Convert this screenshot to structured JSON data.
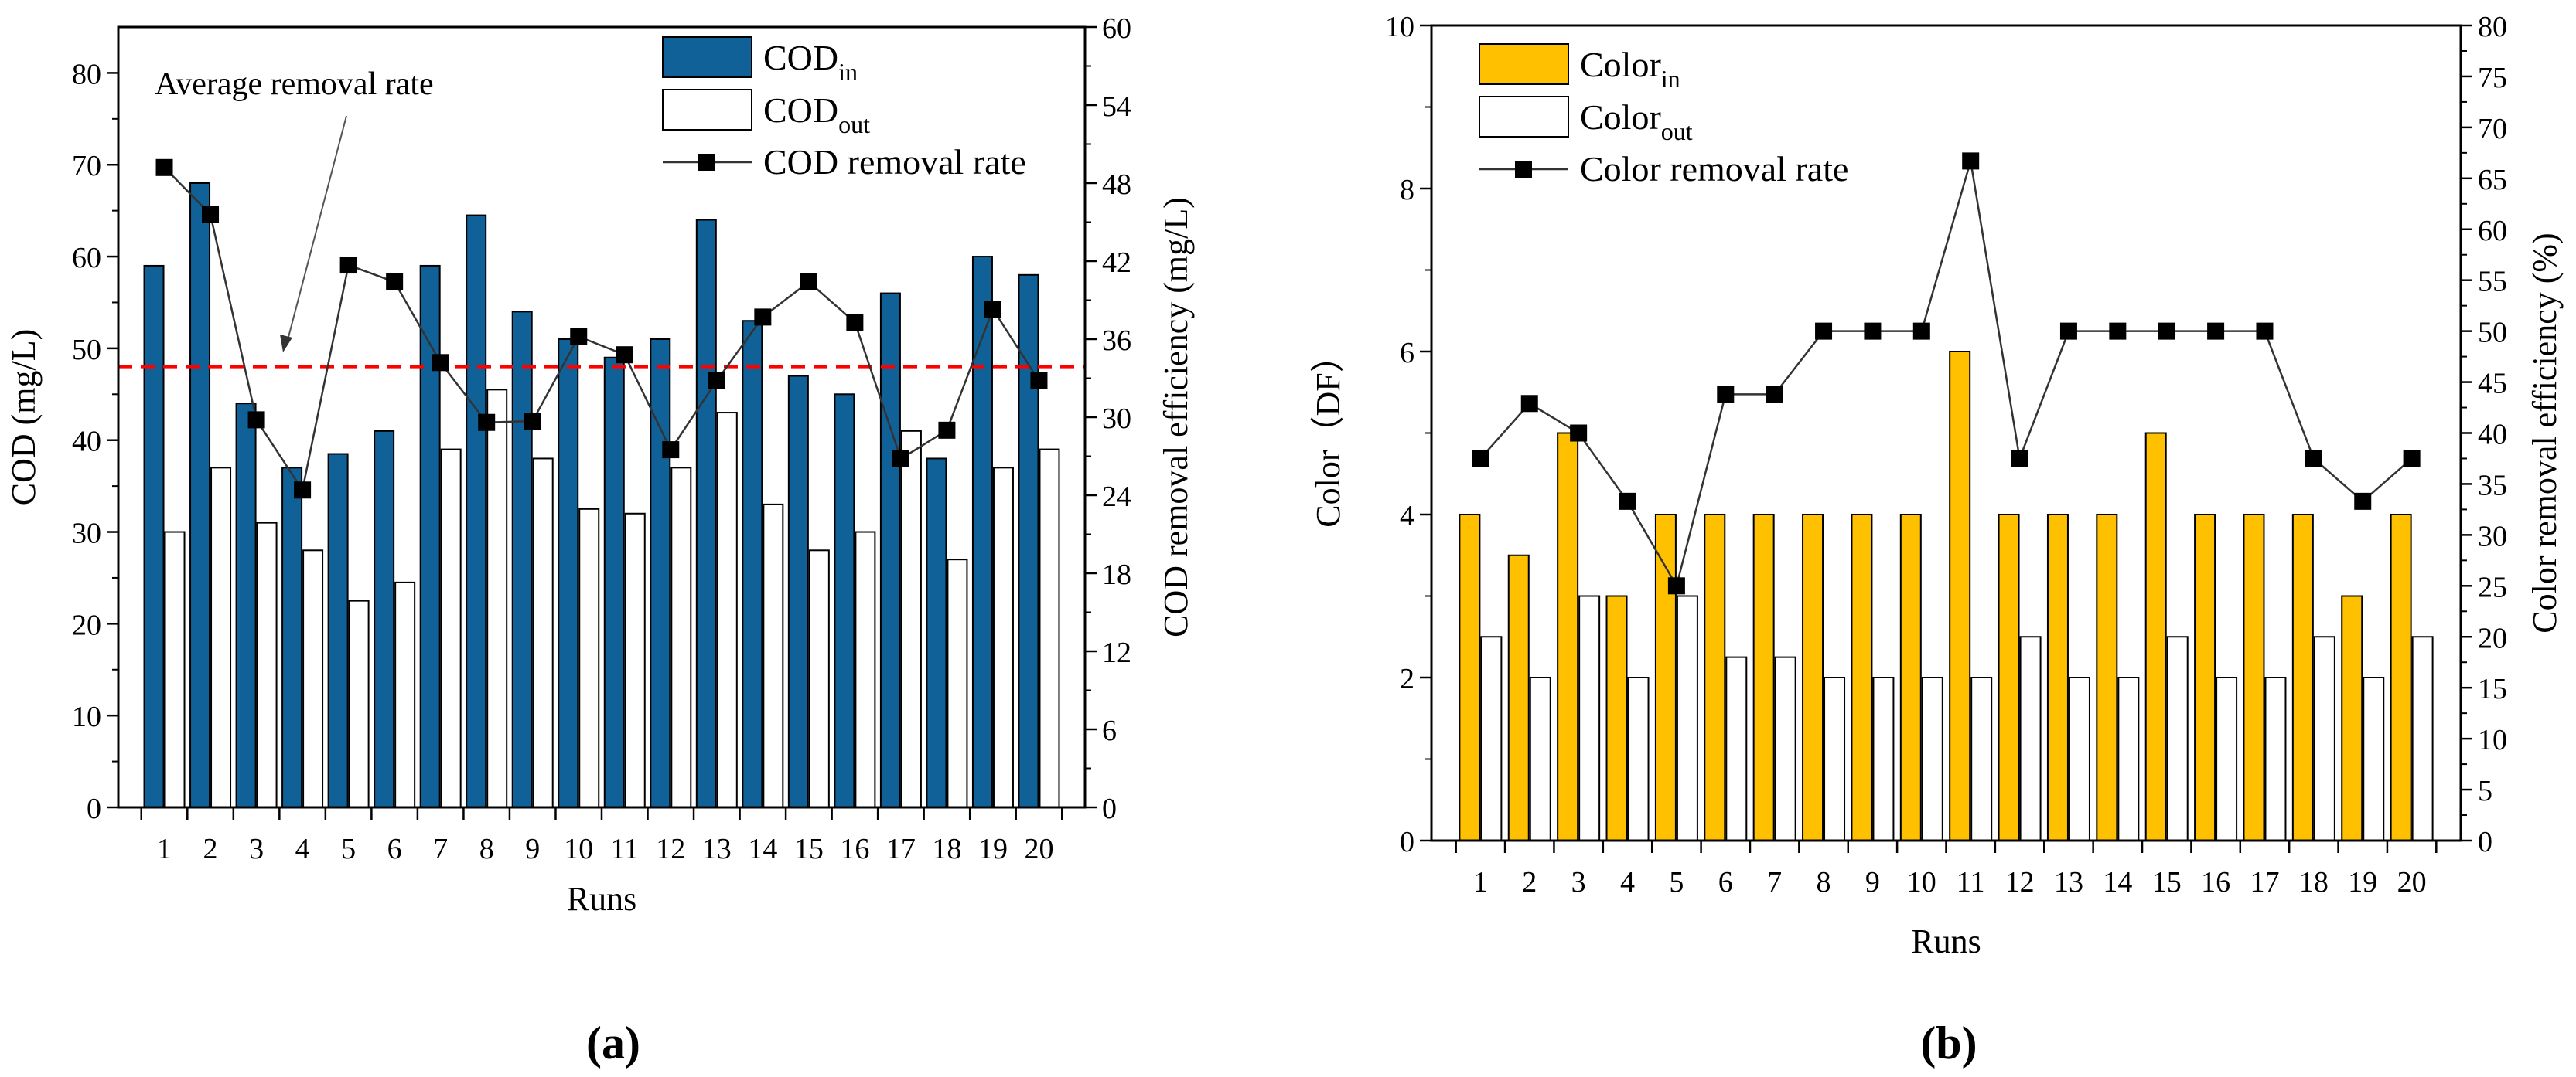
{
  "colors": {
    "cod_in": "#0f6197",
    "color_in": "#ffc000",
    "out": "#ffffff",
    "avg_line": "#ff0000",
    "rate_line": "#333333"
  },
  "chart_data": [
    {
      "panel_label": "(a)",
      "type": "bar+line",
      "categories": [
        "1",
        "2",
        "3",
        "4",
        "5",
        "6",
        "7",
        "8",
        "9",
        "10",
        "11",
        "12",
        "13",
        "14",
        "15",
        "16",
        "17",
        "18",
        "19",
        "20"
      ],
      "xlabel": "Runs",
      "ylabel": "COD (mg/L)",
      "y2label": "COD removal efficiency (mg/L)",
      "ylim": [
        0,
        85
      ],
      "yticks": [
        "0",
        "10",
        "20",
        "30",
        "40",
        "50",
        "60",
        "70",
        "80"
      ],
      "y2lim": [
        0,
        60
      ],
      "y2ticks": [
        "0",
        "6",
        "12",
        "18",
        "24",
        "30",
        "36",
        "42",
        "48",
        "54",
        "60"
      ],
      "series": [
        {
          "name": "COD",
          "sub": "in",
          "kind": "bar",
          "values": [
            59,
            68,
            44,
            37,
            38.5,
            41,
            59,
            64.5,
            54,
            51,
            49,
            51,
            64,
            53,
            47,
            45,
            56,
            38,
            60,
            58
          ]
        },
        {
          "name": "COD",
          "sub": "out",
          "kind": "bar",
          "values": [
            30,
            37,
            31,
            28,
            22.5,
            24.5,
            39,
            45.5,
            38,
            32.5,
            32,
            37,
            43,
            33,
            28,
            30,
            41,
            27,
            37,
            39
          ]
        },
        {
          "name": "COD removal rate",
          "kind": "line",
          "axis": "right",
          "values": [
            49.2,
            45.6,
            29.8,
            24.4,
            41.7,
            40.4,
            34.2,
            29.6,
            29.7,
            36.2,
            34.8,
            27.5,
            32.8,
            37.7,
            40.4,
            37.3,
            26.8,
            29.0,
            38.3,
            32.8
          ]
        }
      ],
      "reference_line": {
        "value": 48,
        "axis": "left",
        "style": "dashed"
      },
      "annotation": "Average removal rate"
    },
    {
      "panel_label": "(b)",
      "type": "bar+line",
      "categories": [
        "1",
        "2",
        "3",
        "4",
        "5",
        "6",
        "7",
        "8",
        "9",
        "10",
        "11",
        "12",
        "13",
        "14",
        "15",
        "16",
        "17",
        "18",
        "19",
        "20"
      ],
      "xlabel": "Runs",
      "ylabel": "Color（DF）",
      "y2label": "Color removal efficiency (%)",
      "ylim": [
        0,
        10
      ],
      "yticks": [
        "0",
        "2",
        "4",
        "6",
        "8",
        "10"
      ],
      "y2lim": [
        0,
        80
      ],
      "y2ticks": [
        "0",
        "5",
        "10",
        "15",
        "20",
        "25",
        "30",
        "35",
        "40",
        "45",
        "50",
        "55",
        "60",
        "65",
        "70",
        "75",
        "80"
      ],
      "series": [
        {
          "name": "Color",
          "sub": "in",
          "kind": "bar",
          "values": [
            4,
            3.5,
            5,
            3,
            4,
            4,
            4,
            4,
            4,
            4,
            6,
            4,
            4,
            4,
            5,
            4,
            4,
            4,
            3,
            4
          ]
        },
        {
          "name": "Color",
          "sub": "out",
          "kind": "bar",
          "values": [
            2.5,
            2,
            3,
            2,
            3,
            2.25,
            2.25,
            2,
            2,
            2,
            2,
            2.5,
            2,
            2,
            2.5,
            2,
            2,
            2.5,
            2,
            2.5
          ]
        },
        {
          "name": "Color removal rate",
          "kind": "line",
          "axis": "right",
          "values": [
            37.5,
            42.9,
            40,
            33.3,
            25,
            43.8,
            43.8,
            50,
            50,
            50,
            66.7,
            37.5,
            50,
            50,
            50,
            50,
            50,
            37.5,
            33.3,
            37.5
          ]
        }
      ]
    }
  ]
}
